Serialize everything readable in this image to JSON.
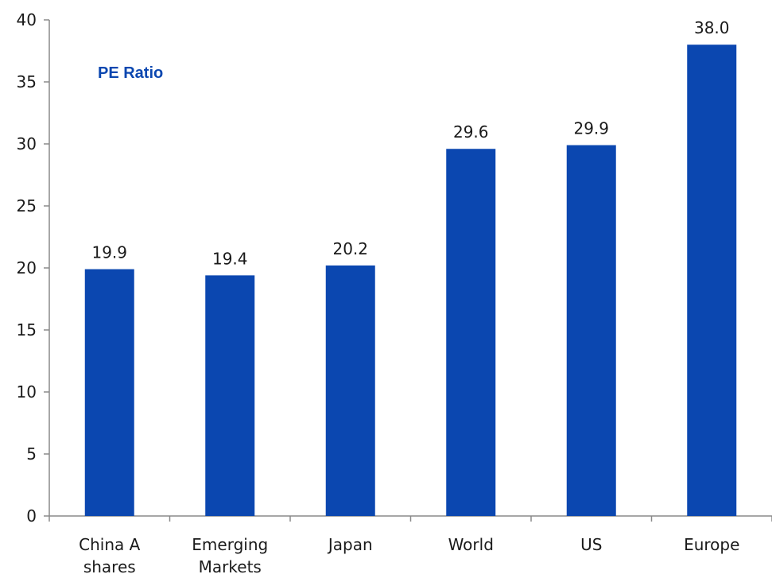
{
  "chart_data": {
    "type": "bar",
    "categories": [
      "China A shares",
      "Emerging Markets",
      "Japan",
      "World",
      "US",
      "Europe"
    ],
    "category_lines": [
      [
        "China A",
        "shares"
      ],
      [
        "Emerging",
        "Markets"
      ],
      [
        "Japan"
      ],
      [
        "World"
      ],
      [
        "US"
      ],
      [
        "Europe"
      ]
    ],
    "series": [
      {
        "name": "PE Ratio",
        "values": [
          19.9,
          19.4,
          20.2,
          29.6,
          29.9,
          38.0
        ],
        "color": "#0b47b0"
      }
    ],
    "data_labels": [
      "19.9",
      "19.4",
      "20.2",
      "29.6",
      "29.9",
      "38.0"
    ],
    "ylim": [
      0,
      40
    ],
    "yticks": [
      0,
      5,
      10,
      15,
      20,
      25,
      30,
      35,
      40
    ],
    "title": "",
    "xlabel": "",
    "ylabel": "",
    "grid": false,
    "legend_position": "top-left",
    "legend_color": "#0b47b0"
  }
}
